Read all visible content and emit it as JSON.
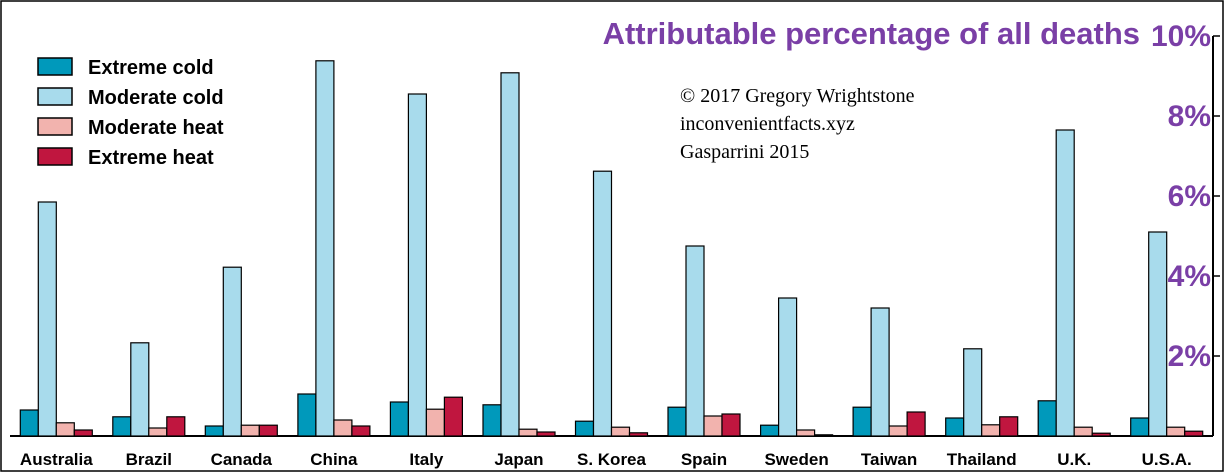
{
  "chart_data": {
    "type": "bar",
    "title": "Attributable percentage of all deaths",
    "categories": [
      "Australia",
      "Brazil",
      "Canada",
      "China",
      "Italy",
      "Japan",
      "S. Korea",
      "Spain",
      "Sweden",
      "Taiwan",
      "Thailand",
      "U.K.",
      "U.S.A."
    ],
    "series": [
      {
        "name": "Extreme cold",
        "color": "#0099bb",
        "values": [
          0.65,
          0.48,
          0.25,
          1.05,
          0.85,
          0.78,
          0.37,
          0.72,
          0.27,
          0.72,
          0.45,
          0.88,
          0.45
        ]
      },
      {
        "name": "Moderate cold",
        "color": "#a8dbec",
        "values": [
          5.85,
          2.33,
          4.22,
          9.38,
          8.55,
          9.08,
          6.62,
          4.75,
          3.45,
          3.2,
          2.18,
          7.65,
          5.1
        ]
      },
      {
        "name": "Moderate heat",
        "color": "#f2b3ae",
        "values": [
          0.33,
          0.2,
          0.27,
          0.4,
          0.67,
          0.17,
          0.22,
          0.5,
          0.15,
          0.25,
          0.28,
          0.22,
          0.22
        ]
      },
      {
        "name": "Extreme heat",
        "color": "#c0163f",
        "values": [
          0.15,
          0.48,
          0.27,
          0.25,
          0.97,
          0.1,
          0.08,
          0.55,
          0.03,
          0.6,
          0.48,
          0.07,
          0.12
        ]
      }
    ],
    "yticks": [
      "2%",
      "4%",
      "6%",
      "8%",
      "10%"
    ],
    "ytick_values": [
      2,
      4,
      6,
      8,
      10
    ],
    "ylim": [
      0,
      10
    ],
    "y_axis_side": "right",
    "grid": false,
    "legend_position": "top-left",
    "annotations": [
      "© 2017 Gregory Wrightstone",
      "inconvenientfacts.xyz",
      "Gasparrini 2015"
    ]
  }
}
